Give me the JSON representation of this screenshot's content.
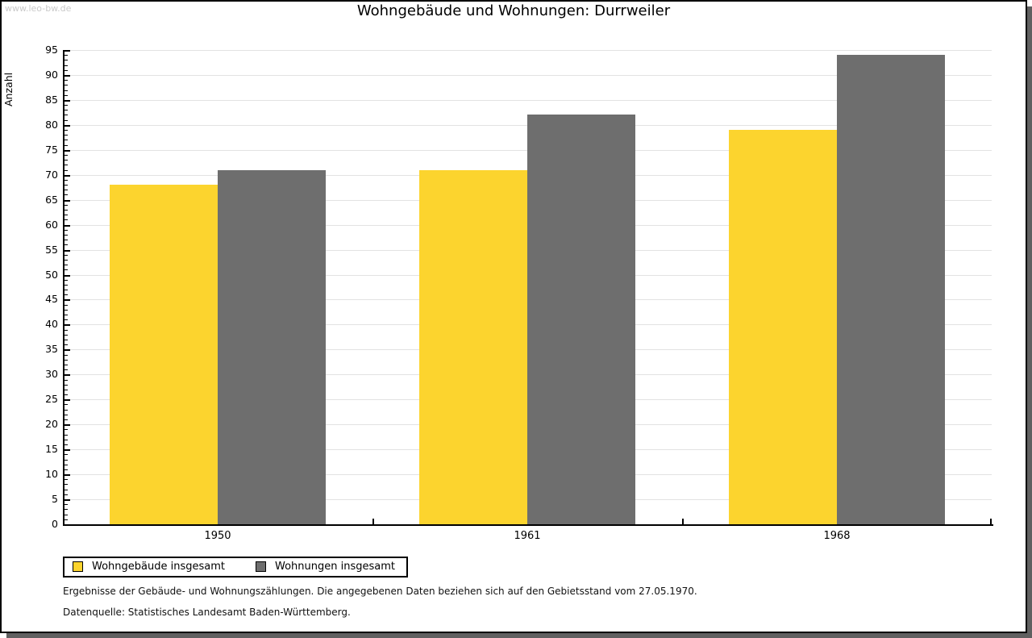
{
  "watermark": "www.leo-bw.de",
  "chart_data": {
    "type": "bar",
    "title": "Wohngebäude und Wohnungen: Durrweiler",
    "ylabel": "Anzahl",
    "xlabel": "",
    "categories": [
      "1950",
      "1961",
      "1968"
    ],
    "series": [
      {
        "name": "Wohngebäude insgesamt",
        "color": "#FCD42E",
        "values": [
          68,
          71,
          79
        ]
      },
      {
        "name": "Wohnungen insgesamt",
        "color": "#6E6E6E",
        "values": [
          71,
          82,
          94
        ]
      }
    ],
    "ylim": [
      0,
      95
    ],
    "y_major_step": 5,
    "y_minor_step": 1,
    "grid": true,
    "gridline_color": "#e2e2e2",
    "legend_position": "bottom-left"
  },
  "footnotes": [
    "Ergebnisse der Gebäude- und Wohnungszählungen. Die angegebenen Daten beziehen sich auf den Gebietsstand vom 27.05.1970.",
    "Datenquelle: Statistisches Landesamt Baden-Württemberg."
  ]
}
